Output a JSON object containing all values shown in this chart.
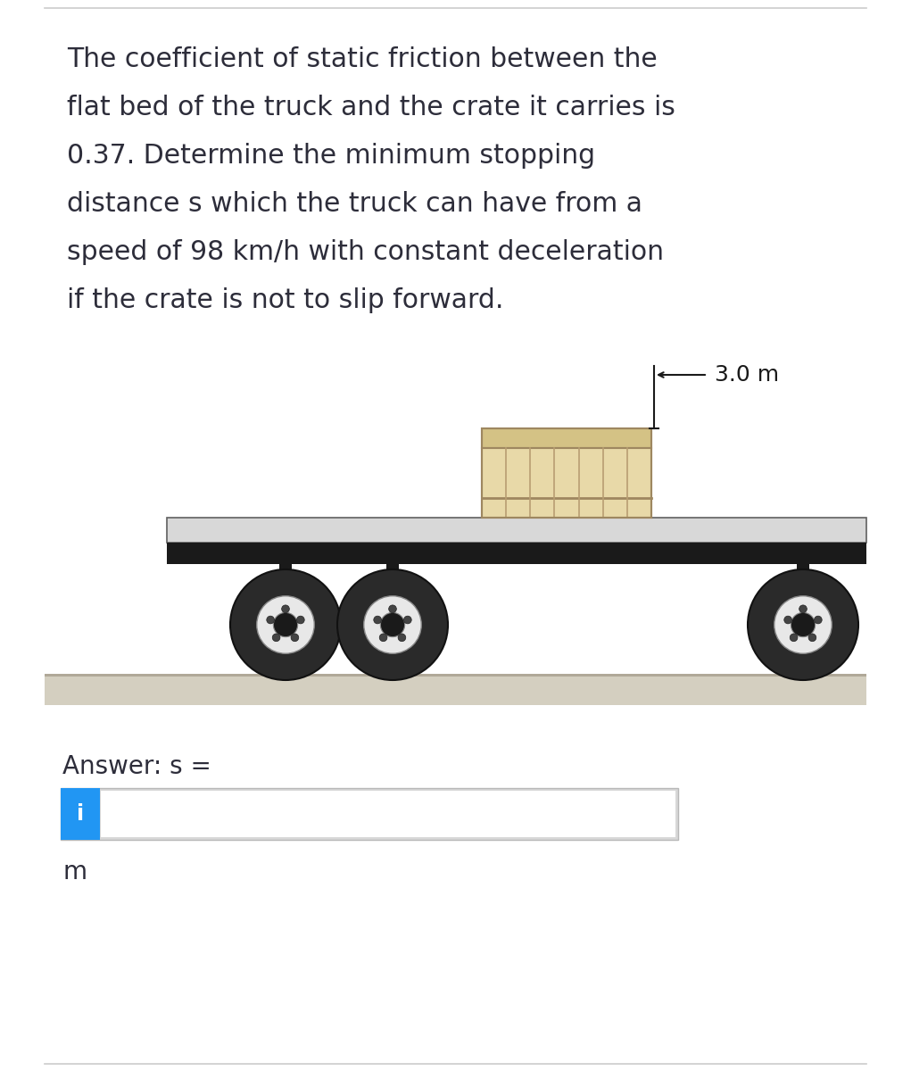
{
  "lines": [
    "The coefficient of static friction between the",
    "flat bed of the truck and the crate it carries is",
    "0.37. Determine the minimum stopping",
    "distance s which the truck can have from a",
    "speed of 98 km/h with constant deceleration",
    "if the crate is not to slip forward."
  ],
  "measurement_label": "3.0 m",
  "answer_label": "Answer: s =",
  "unit_label": "m",
  "bg_color": "#ffffff",
  "text_color": "#2d2d3a",
  "text_fontsize": 21.5,
  "answer_fontsize": 20,
  "blue_box_color": "#2196f3",
  "truck_bed_color": "#d8d8d8",
  "truck_bed_dark": "#1a1a1a",
  "crate_fill": "#e8d9a8",
  "crate_top_fill": "#d4c285",
  "crate_border": "#9e8760",
  "crate_slat_color": "#b89e72",
  "wheel_outer": "#2a2a2a",
  "wheel_mid": "#c8c8c8",
  "wheel_hub": "#e8e8e8",
  "wheel_center": "#1a1a1a",
  "wheel_lug": "#444444",
  "ground_fill": "#d4cfc0",
  "ground_top": "#b0a898",
  "panel_border": "#cccccc",
  "input_border": "#b8b8b8",
  "input_shadow": "#d8d8d8"
}
